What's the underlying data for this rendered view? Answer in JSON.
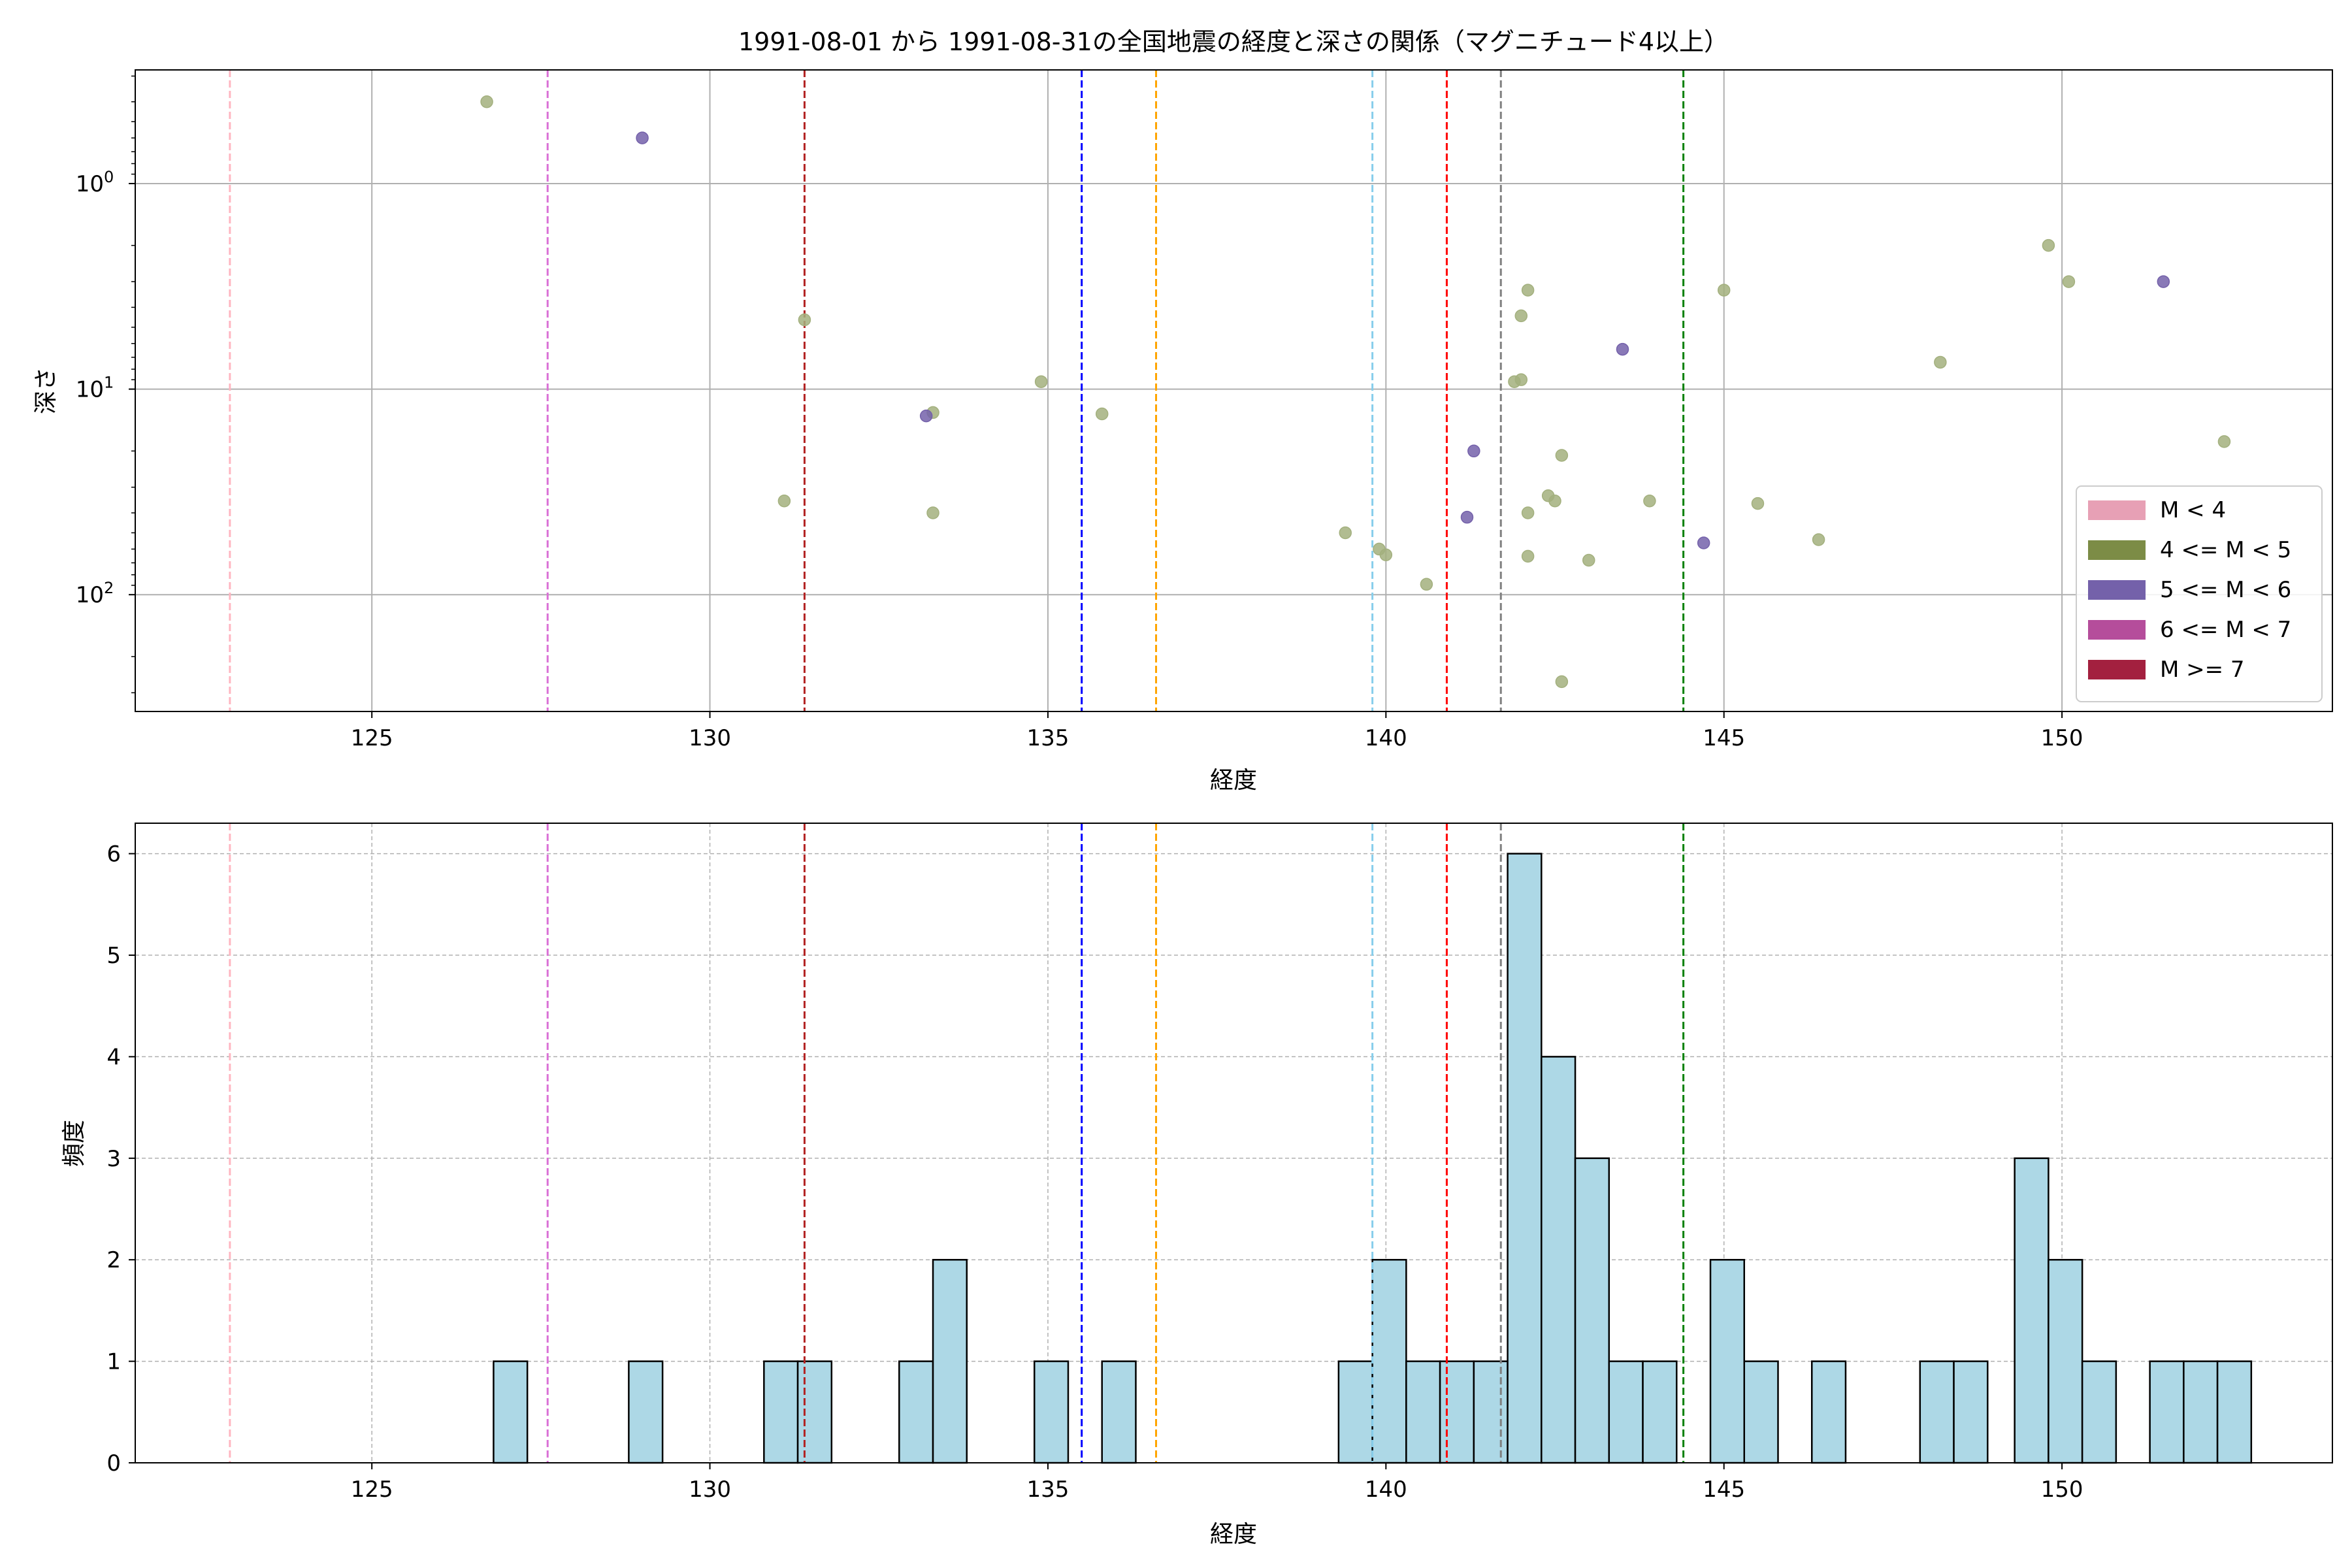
{
  "chart_data": [
    {
      "type": "scatter",
      "title": "1991-08-01 から 1991-08-31の全国地震の経度と深さの関係（マグニチュード4以上）",
      "xlabel": "経度",
      "ylabel": "深さ",
      "xlim": [
        121.5,
        154.0
      ],
      "ylim": [
        370,
        0.28
      ],
      "yscale": "log",
      "y_inverted": true,
      "grid": true,
      "x_ticks": [
        "125",
        "130",
        "135",
        "140",
        "145",
        "150"
      ],
      "y_ticks": [
        "10^0",
        "10^1",
        "10^2"
      ],
      "legend_position": "lower-right",
      "legend": [
        {
          "label": "M < 4",
          "color": "#e7a0b5"
        },
        {
          "label": "4 <= M < 5",
          "color": "#7c8c46"
        },
        {
          "label": "5 <= M < 6",
          "color": "#7461aa"
        },
        {
          "label": "6 <= M < 7",
          "color": "#b54d9b"
        },
        {
          "label": "M >= 7",
          "color": "#a3203f"
        }
      ],
      "reference_lines": [
        {
          "x": 122.9,
          "color": "#ffb6c1"
        },
        {
          "x": 127.6,
          "color": "#da70d6"
        },
        {
          "x": 131.4,
          "color": "#b22222"
        },
        {
          "x": 135.5,
          "color": "#0000ff"
        },
        {
          "x": 136.6,
          "color": "#ffa500"
        },
        {
          "x": 139.8,
          "color": "#87ceeb"
        },
        {
          "x": 140.9,
          "color": "#ff0000"
        },
        {
          "x": 141.7,
          "color": "#808080"
        },
        {
          "x": 144.4,
          "color": "#008000"
        }
      ],
      "series": [
        {
          "magnitude_class": "4 <= M < 5",
          "color": "#a3b07e",
          "points": [
            [
              126.7,
              0.4
            ],
            [
              131.4,
              4.6
            ],
            [
              133.3,
              13
            ],
            [
              131.1,
              35
            ],
            [
              133.3,
              40
            ],
            [
              134.9,
              9.2
            ],
            [
              135.8,
              13.2
            ],
            [
              139.4,
              50
            ],
            [
              139.9,
              60
            ],
            [
              140.0,
              64
            ],
            [
              140.6,
              89
            ],
            [
              142.1,
              3.3
            ],
            [
              142.0,
              4.4
            ],
            [
              141.9,
              9.2
            ],
            [
              142.0,
              9
            ],
            [
              142.6,
              21
            ],
            [
              142.4,
              33
            ],
            [
              142.5,
              35
            ],
            [
              142.1,
              40
            ],
            [
              142.1,
              65
            ],
            [
              143.0,
              68
            ],
            [
              142.6,
              265
            ],
            [
              143.9,
              35
            ],
            [
              145.0,
              3.3
            ],
            [
              145.5,
              36
            ],
            [
              146.4,
              54
            ],
            [
              148.2,
              7.4
            ],
            [
              149.8,
              2.0
            ],
            [
              150.1,
              3.0
            ],
            [
              152.4,
              18
            ]
          ]
        },
        {
          "magnitude_class": "5 <= M < 6",
          "color": "#7461aa",
          "points": [
            [
              129.0,
              0.6
            ],
            [
              133.2,
              13.5
            ],
            [
              141.3,
              20
            ],
            [
              141.2,
              42
            ],
            [
              143.5,
              6.4
            ],
            [
              144.7,
              56
            ],
            [
              151.5,
              3.0
            ]
          ]
        }
      ]
    },
    {
      "type": "bar",
      "xlabel": "経度",
      "ylabel": "頻度",
      "xlim": [
        121.5,
        154.0
      ],
      "ylim": [
        0,
        6.3
      ],
      "grid": true,
      "x_ticks": [
        "125",
        "130",
        "135",
        "140",
        "145",
        "150"
      ],
      "y_ticks": [
        "0",
        "1",
        "2",
        "3",
        "4",
        "5",
        "6"
      ],
      "bar_color": "#add8e6",
      "bin_width": 0.5,
      "bins": [
        {
          "x0": 126.8,
          "count": 1
        },
        {
          "x0": 128.8,
          "count": 1
        },
        {
          "x0": 130.8,
          "count": 1
        },
        {
          "x0": 131.3,
          "count": 1
        },
        {
          "x0": 132.8,
          "count": 1
        },
        {
          "x0": 133.3,
          "count": 2
        },
        {
          "x0": 134.8,
          "count": 1
        },
        {
          "x0": 135.8,
          "count": 1
        },
        {
          "x0": 139.3,
          "count": 1
        },
        {
          "x0": 139.8,
          "count": 2
        },
        {
          "x0": 140.3,
          "count": 1
        },
        {
          "x0": 140.8,
          "count": 1
        },
        {
          "x0": 141.3,
          "count": 1
        },
        {
          "x0": 141.8,
          "count": 6
        },
        {
          "x0": 142.3,
          "count": 4
        },
        {
          "x0": 142.8,
          "count": 3
        },
        {
          "x0": 143.3,
          "count": 1
        },
        {
          "x0": 143.8,
          "count": 1
        },
        {
          "x0": 144.8,
          "count": 2
        },
        {
          "x0": 145.3,
          "count": 1
        },
        {
          "x0": 146.3,
          "count": 1
        },
        {
          "x0": 147.9,
          "count": 1
        },
        {
          "x0": 148.4,
          "count": 1
        },
        {
          "x0": 149.3,
          "count": 3
        },
        {
          "x0": 149.8,
          "count": 2
        },
        {
          "x0": 150.3,
          "count": 1
        },
        {
          "x0": 151.3,
          "count": 1
        },
        {
          "x0": 151.8,
          "count": 1
        },
        {
          "x0": 152.3,
          "count": 1
        }
      ],
      "reference_lines": [
        {
          "x": 122.9,
          "color": "#ffb6c1"
        },
        {
          "x": 127.6,
          "color": "#da70d6"
        },
        {
          "x": 131.4,
          "color": "#b22222"
        },
        {
          "x": 135.5,
          "color": "#0000ff"
        },
        {
          "x": 136.6,
          "color": "#ffa500"
        },
        {
          "x": 139.8,
          "color": "#87ceeb"
        },
        {
          "x": 140.9,
          "color": "#ff0000"
        },
        {
          "x": 141.7,
          "color": "#808080"
        },
        {
          "x": 144.4,
          "color": "#008000"
        }
      ]
    }
  ]
}
